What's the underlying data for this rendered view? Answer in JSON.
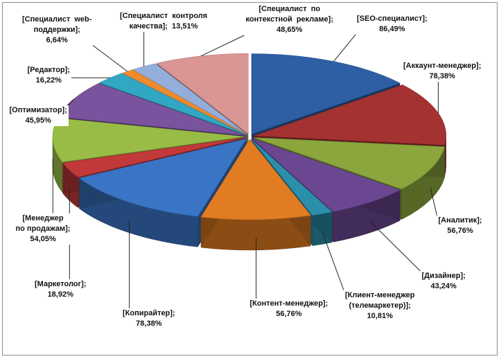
{
  "chart_data": {
    "type": "pie",
    "style": "3d-exploded",
    "title": "",
    "series": [
      {
        "name": "",
        "categories": [
          "SEO-специалист",
          "Аккаунт-менеджер",
          "Аналитик",
          "Дизайнер",
          "Клиент-менеджер (телемаркетер)",
          "Контент-менеджер",
          "Копирайтер",
          "Маркетолог",
          "Менеджер по продажам",
          "Оптимизатор",
          "Редактор",
          "Специалист web-поддержки",
          "Специалист контроля качества",
          "Специалист по контекстной рекламе"
        ],
        "values": [
          86.49,
          78.38,
          56.76,
          43.24,
          10.81,
          56.76,
          78.38,
          18.92,
          54.05,
          45.95,
          16.22,
          6.64,
          13.51,
          48.65
        ],
        "labels": [
          "[SEO-специалист];\n86,49%",
          "[Аккаунт-менеджер];\n78,38%",
          "[Аналитик];\n56,76%",
          "[Дизайнер];\n43,24%",
          "[Клиент-менеджер\n(телемаркетер)];\n10,81%",
          "[Контент-менеджер];\n56,76%",
          "[Копирайтер];\n78,38%",
          "[Маркетолог];\n18,92%",
          "[Менеджер\nпо продажам];\n54,05%",
          "[Оптимизатор];\n45,95%",
          "[Редактор];\n16,22%",
          "[Специалист  web-\nподдержки];\n6,64%",
          "[Специалист  контроля\nкачества];  13,51%",
          "[Специалист  по\nконтекстной  рекламе];\n48,65%"
        ]
      }
    ],
    "colors": [
      "#2e5ea3",
      "#a33230",
      "#8aa63d",
      "#6b4792",
      "#2b8fab",
      "#e27c22",
      "#3a74c4",
      "#c2393a",
      "#98bc45",
      "#7a539e",
      "#31a7c3",
      "#ef8a2d",
      "#93aedb",
      "#d99694"
    ],
    "legend": "none",
    "data_labels": "category; value"
  }
}
